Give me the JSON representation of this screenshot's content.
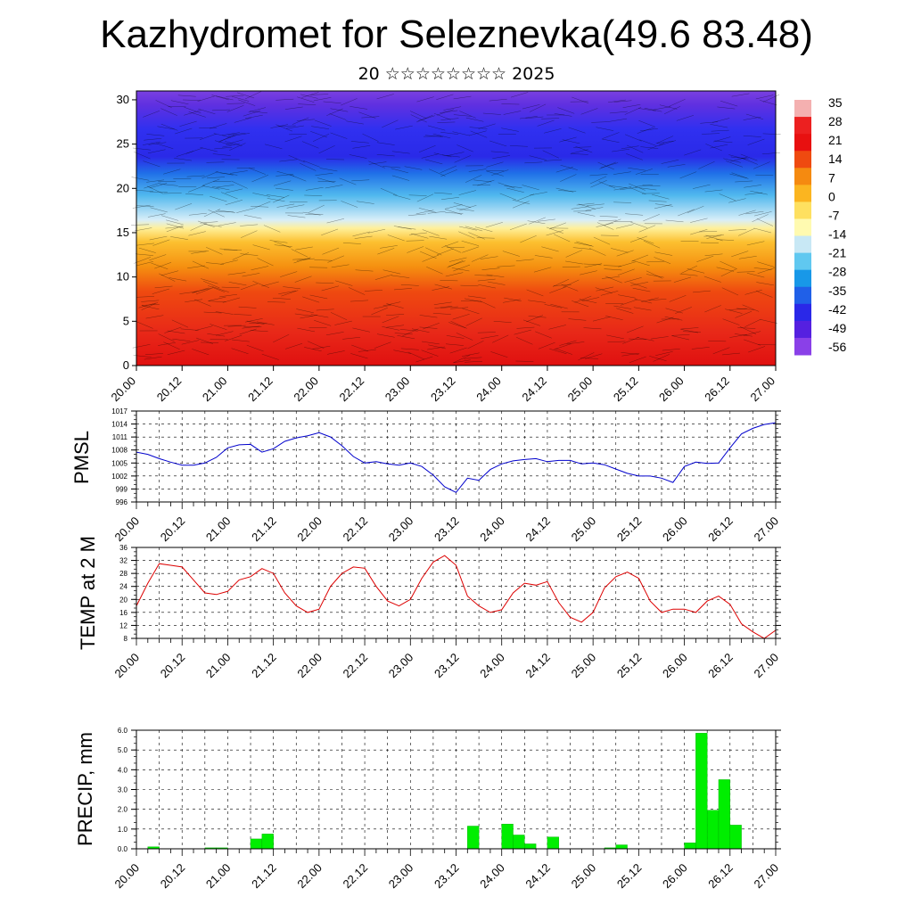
{
  "title": "Kazhydromet for Seleznevka(49.6 83.48)",
  "subtitle": "20 ☆☆☆☆☆☆☆☆ 2025",
  "colors": {
    "pmsl_line": "#0000cc",
    "temp_line": "#dd0000",
    "precip_bar": "#00ee00",
    "frame": "#000000",
    "grid": "#000000"
  },
  "time_ticks": [
    "20.00",
    "20.12",
    "21.00",
    "21.12",
    "22.00",
    "22.12",
    "23.00",
    "23.12",
    "24.00",
    "24.12",
    "25.00",
    "25.12",
    "26.00",
    "26.12",
    "27.00"
  ],
  "chart_data": [
    {
      "type": "heatmap",
      "name": "temperature-wind-cross-section",
      "x_ticks": [
        "20.00",
        "20.12",
        "21.00",
        "21.12",
        "22.00",
        "22.12",
        "23.00",
        "23.12",
        "24.00",
        "24.12",
        "25.00",
        "25.12",
        "26.00",
        "26.12",
        "27.00"
      ],
      "y_ticks": [
        "0",
        "5",
        "10",
        "15",
        "20",
        "25",
        "30"
      ],
      "ylim": [
        0,
        31
      ],
      "colorbar_labels": [
        "35",
        "28",
        "21",
        "14",
        "7",
        "0",
        "-7",
        "-14",
        "-21",
        "-28",
        "-35",
        "-42",
        "-49",
        "-56"
      ],
      "colorbar_colors": [
        "#f4b0b0",
        "#ec2020",
        "#e81010",
        "#ef4a10",
        "#f58a10",
        "#fbb520",
        "#fee060",
        "#fffab0",
        "#c8e8f5",
        "#60c8f0",
        "#1898e8",
        "#2060e8",
        "#2a28e8",
        "#5520e0",
        "#8a40e8"
      ],
      "grid": false
    },
    {
      "type": "line",
      "name": "PMSL",
      "ylabel": "PMSL",
      "ylim": [
        996,
        1017
      ],
      "y_ticks": [
        "1017",
        "1014",
        "1011",
        "1008",
        "1005",
        "1002",
        "999",
        "996"
      ],
      "x_ticks": [
        "20.00",
        "20.12",
        "21.00",
        "21.12",
        "22.00",
        "22.12",
        "23.00",
        "23.12",
        "24.00",
        "24.12",
        "25.00",
        "25.12",
        "26.00",
        "26.12",
        "27.00"
      ],
      "grid": true,
      "x": [
        0,
        3,
        6,
        9,
        12,
        15,
        18,
        21,
        24,
        27,
        30,
        33,
        36,
        39,
        42,
        45,
        48,
        51,
        54,
        57,
        60,
        63,
        66,
        69,
        72,
        75,
        78,
        81,
        84,
        87,
        90,
        93,
        96,
        99,
        102,
        105,
        108,
        111,
        114,
        117,
        120,
        123,
        126,
        129,
        132,
        135,
        138,
        141,
        144,
        147,
        150,
        153,
        156,
        159,
        162,
        165,
        168
      ],
      "values": [
        1007.5,
        1007,
        1006,
        1005.2,
        1004.5,
        1004.5,
        1005,
        1006.3,
        1008.5,
        1009.2,
        1009.3,
        1007.5,
        1008.3,
        1010,
        1010.8,
        1011.3,
        1012,
        1011,
        1009,
        1006.5,
        1005,
        1005.3,
        1004.8,
        1004.5,
        1005,
        1004.2,
        1002.2,
        999.5,
        998.2,
        1001.5,
        1001,
        1003.5,
        1004.8,
        1005.5,
        1005.8,
        1006,
        1005.3,
        1005.6,
        1005.6,
        1004.8,
        1005,
        1004.6,
        1003.6,
        1002.6,
        1002,
        1002,
        1001.5,
        1000.5,
        1004.2,
        1005.2,
        1004.9,
        1005,
        1008.5,
        1011.7,
        1013,
        1013.9,
        1014.3
      ]
    },
    {
      "type": "line",
      "name": "TEMP at 2 M",
      "ylabel": "TEMP at 2 M",
      "ylim": [
        8,
        36
      ],
      "y_ticks": [
        "36",
        "32",
        "28",
        "24",
        "20",
        "16",
        "12",
        "8"
      ],
      "x_ticks": [
        "20.00",
        "20.12",
        "21.00",
        "21.12",
        "22.00",
        "22.12",
        "23.00",
        "23.12",
        "24.00",
        "24.12",
        "25.00",
        "25.12",
        "26.00",
        "26.12",
        "27.00"
      ],
      "grid": true,
      "x": [
        0,
        3,
        6,
        9,
        12,
        15,
        18,
        21,
        24,
        27,
        30,
        33,
        36,
        39,
        42,
        45,
        48,
        51,
        54,
        57,
        60,
        63,
        66,
        69,
        72,
        75,
        78,
        81,
        84,
        87,
        90,
        93,
        96,
        99,
        102,
        105,
        108,
        111,
        114,
        117,
        120,
        123,
        126,
        129,
        132,
        135,
        138,
        141,
        144,
        147,
        150,
        153,
        156,
        159,
        162,
        165,
        168
      ],
      "values": [
        18,
        25,
        31,
        30.5,
        30,
        26,
        22,
        21.5,
        22.5,
        26,
        27,
        29.5,
        28,
        22,
        18,
        16,
        17,
        24,
        28,
        30,
        29.6,
        24,
        19.5,
        18,
        20,
        26.5,
        31.5,
        33.5,
        30.5,
        21,
        18,
        16,
        16.8,
        22,
        25,
        24.4,
        25.5,
        19,
        14.5,
        13,
        16,
        23.5,
        27,
        28.4,
        26.5,
        19.5,
        16,
        17,
        17,
        16,
        19.5,
        21,
        18.5,
        12.5,
        10,
        8,
        10.5
      ]
    },
    {
      "type": "bar",
      "name": "PRECIP",
      "ylabel": "PRECIP, mm",
      "ylim": [
        0,
        6
      ],
      "y_ticks": [
        "6.0",
        "5.0",
        "4.0",
        "3.0",
        "2.0",
        "1.0",
        "0.0"
      ],
      "x_ticks": [
        "20.00",
        "20.12",
        "21.00",
        "21.12",
        "22.00",
        "22.12",
        "23.00",
        "23.12",
        "24.00",
        "24.12",
        "25.00",
        "25.12",
        "26.00",
        "26.12",
        "27.00"
      ],
      "grid": true,
      "x": [
        4.5,
        19.5,
        22.5,
        31.5,
        34.5,
        88.5,
        97.5,
        100.5,
        103.5,
        109.5,
        124.5,
        127.5,
        145.5,
        148.5,
        151.5,
        154.5,
        157.5
      ],
      "values": [
        0.1,
        0.05,
        0.05,
        0.5,
        0.75,
        1.15,
        1.25,
        0.7,
        0.25,
        0.6,
        0.05,
        0.2,
        0.3,
        5.85,
        1.95,
        3.5,
        1.2
      ]
    }
  ]
}
